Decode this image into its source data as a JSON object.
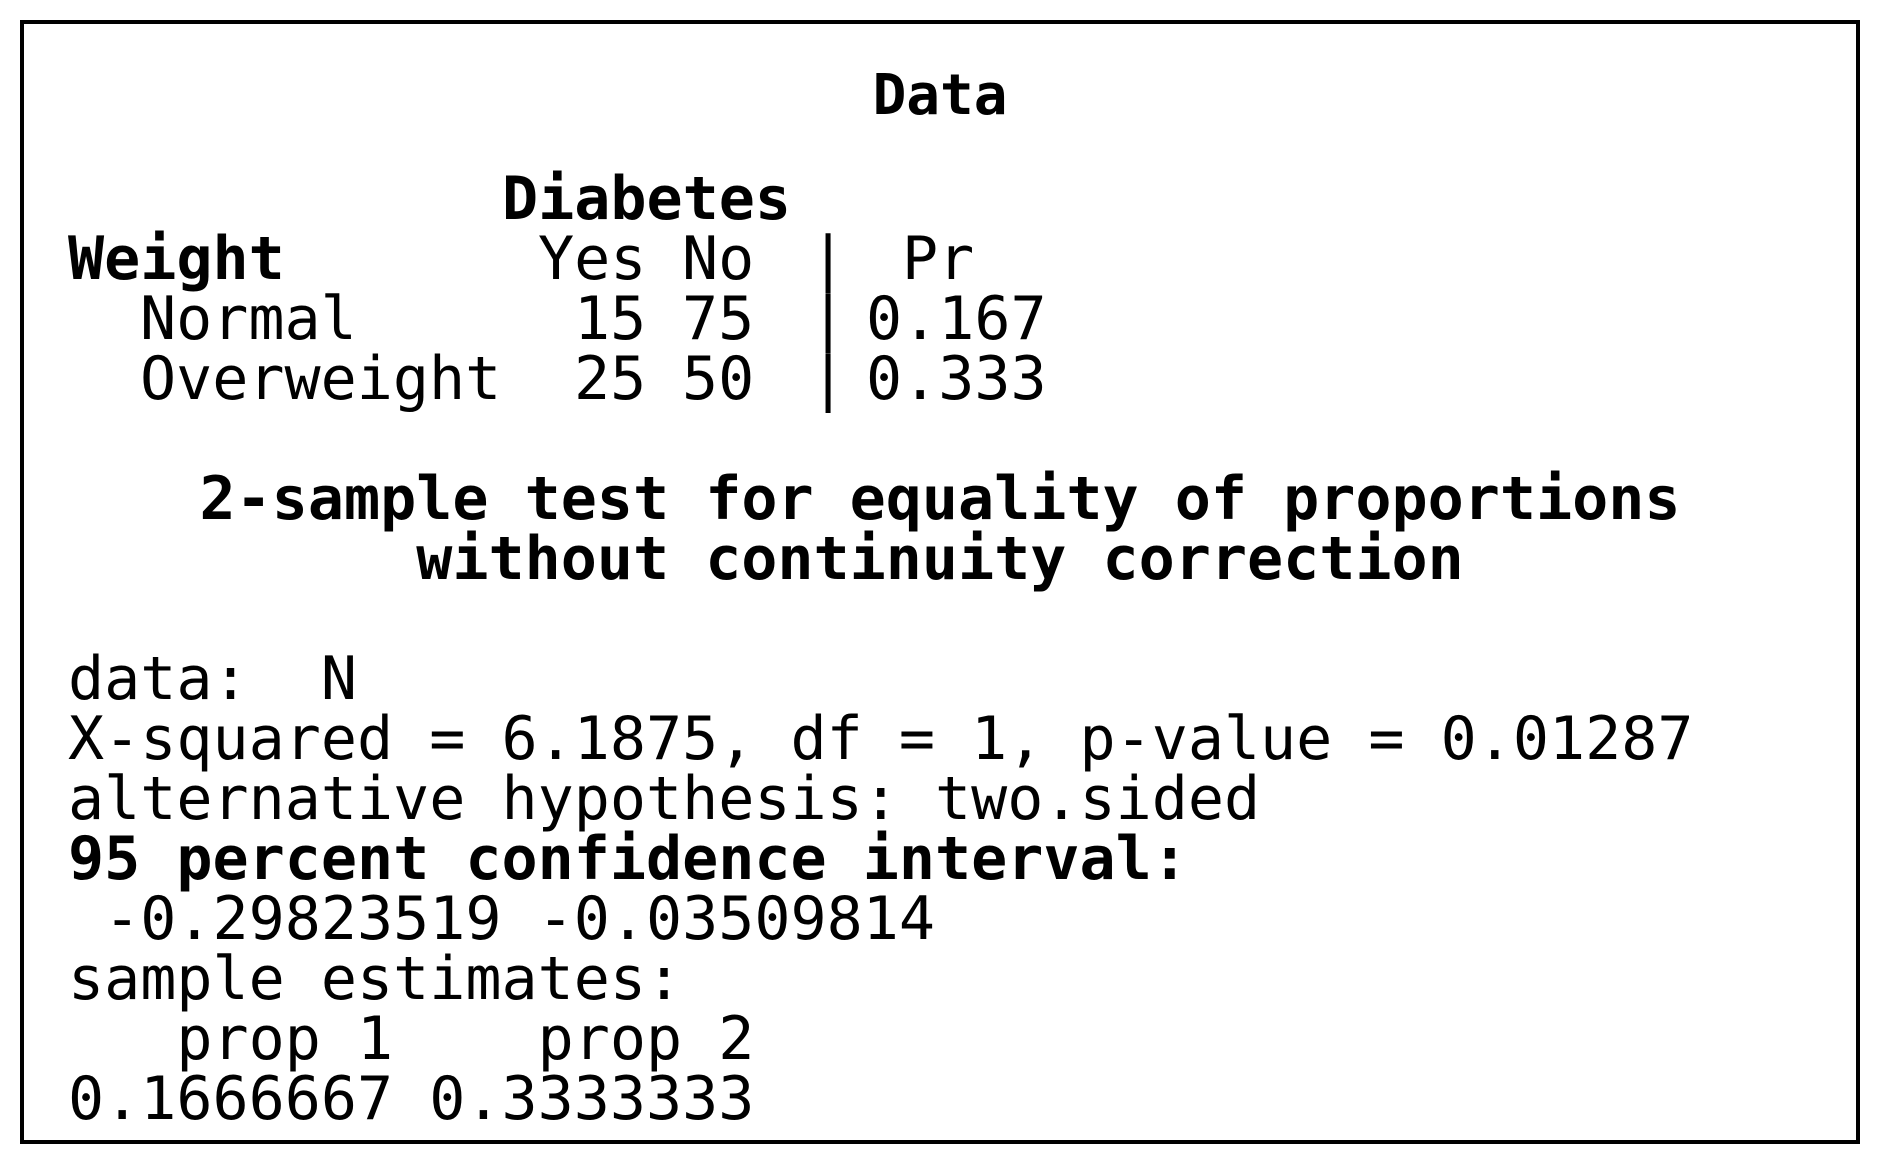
{
  "data_section": {
    "heading": "Data",
    "col_group_header": "Diabetes",
    "row_group_header": "Weight",
    "col_headers": [
      "Yes",
      "No"
    ],
    "separator": "|",
    "pr_header": "Pr",
    "rows": [
      {
        "label": "Normal",
        "yes": "15",
        "no": "75",
        "pr": "0.167"
      },
      {
        "label": "Overweight",
        "yes": "25",
        "no": "50",
        "pr": "0.333"
      }
    ]
  },
  "test": {
    "title_line1": "2-sample test for equality of proportions",
    "title_line2": "without continuity correction",
    "data_line": "data:  N",
    "stats_line": "X-squared = 6.1875, df = 1, p-value = 0.01287",
    "alternative_line": "alternative hypothesis: two.sided",
    "ci_heading": "95 percent confidence interval:",
    "ci_values": " -0.29823519 -0.03509814",
    "estimates_heading": "sample estimates:",
    "estimates_labels": "   prop 1    prop 2",
    "estimates_values": "0.1666667 0.3333333"
  }
}
